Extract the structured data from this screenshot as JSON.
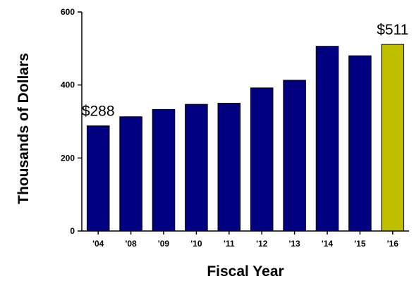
{
  "chart_data": {
    "type": "bar",
    "categories": [
      "'04",
      "'08",
      "'09",
      "'10",
      "'11",
      "'12",
      "'13",
      "'14",
      "'15",
      "'16"
    ],
    "values": [
      288,
      313,
      333,
      347,
      350,
      392,
      413,
      506,
      480,
      511
    ],
    "highlight_index": 9,
    "colors": {
      "bar": "#000080",
      "highlight": "#bfbf00",
      "stroke": "#000000"
    },
    "xlabel": "Fiscal Year",
    "ylabel": "Thousands of Dollars",
    "ylim": [
      0,
      600
    ],
    "yticks": [
      0,
      200,
      400,
      600
    ],
    "ytick_labels": [
      "0",
      "200",
      "400",
      "600"
    ],
    "annotations": [
      {
        "index": 0,
        "text": "$288"
      },
      {
        "index": 9,
        "text": "$511"
      }
    ],
    "grid": false
  }
}
